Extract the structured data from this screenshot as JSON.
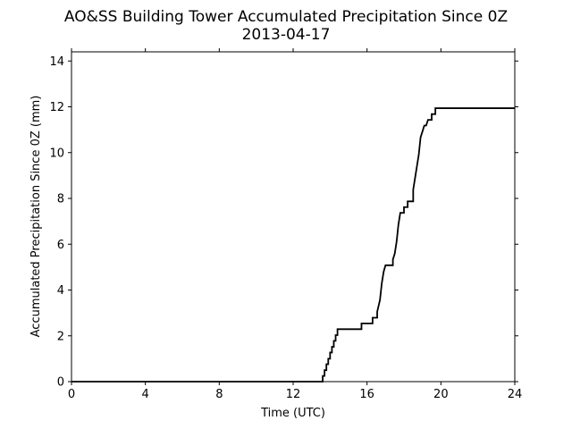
{
  "chart_data": {
    "type": "line",
    "title": "AO&SS Building Tower Accumulated Precipitation Since 0Z",
    "subtitle": "2013-04-17",
    "xlabel": "Time (UTC)",
    "ylabel": "Accumulated Precipitation Since 0Z (mm)",
    "xlim": [
      0,
      24
    ],
    "ylim": [
      0,
      14.4
    ],
    "x_ticks": [
      0,
      4,
      8,
      12,
      16,
      20,
      24
    ],
    "x_tick_labels": [
      "0",
      "4",
      "8",
      "12",
      "16",
      "20",
      "24"
    ],
    "y_ticks": [
      0,
      2,
      4,
      6,
      8,
      10,
      12,
      14
    ],
    "y_tick_labels": [
      "0",
      "2",
      "4",
      "6",
      "8",
      "10",
      "12",
      "14"
    ],
    "grid": false,
    "line_color": "#000000",
    "series": [
      {
        "x": [
          0,
          13.6,
          13.6,
          13.7,
          13.7,
          13.8,
          13.8,
          13.9,
          13.9,
          14.0,
          14.0,
          14.1,
          14.1,
          14.2,
          14.2,
          14.3,
          14.3,
          14.4,
          14.4,
          14.5,
          14.6,
          14.6,
          15.7,
          15.7,
          16.3,
          16.3,
          16.55,
          16.55,
          16.7,
          16.8,
          16.9,
          17.0,
          17.0,
          17.4,
          17.4,
          17.5,
          17.6,
          17.7,
          17.8,
          17.9,
          18.0,
          18.0,
          18.2,
          18.2,
          18.5,
          18.5,
          18.6,
          18.7,
          18.8,
          18.9,
          19.0,
          19.1,
          19.2,
          19.3,
          19.3,
          19.5,
          19.5,
          19.7,
          19.7,
          19.85,
          19.85,
          24
        ],
        "y": [
          0,
          0,
          0.25,
          0.25,
          0.5,
          0.5,
          0.76,
          0.76,
          1.0,
          1.0,
          1.27,
          1.27,
          1.52,
          1.52,
          1.78,
          1.78,
          2.03,
          2.03,
          2.29,
          2.29,
          2.29,
          2.29,
          2.29,
          2.54,
          2.54,
          2.79,
          2.79,
          3.05,
          3.56,
          4.3,
          4.8,
          5.08,
          5.08,
          5.08,
          5.33,
          5.59,
          6.1,
          6.86,
          7.37,
          7.37,
          7.37,
          7.62,
          7.62,
          7.87,
          7.87,
          8.38,
          8.89,
          9.4,
          9.9,
          10.67,
          10.92,
          11.18,
          11.18,
          11.43,
          11.43,
          11.43,
          11.68,
          11.68,
          11.94,
          11.94,
          11.94,
          11.94
        ]
      }
    ]
  }
}
